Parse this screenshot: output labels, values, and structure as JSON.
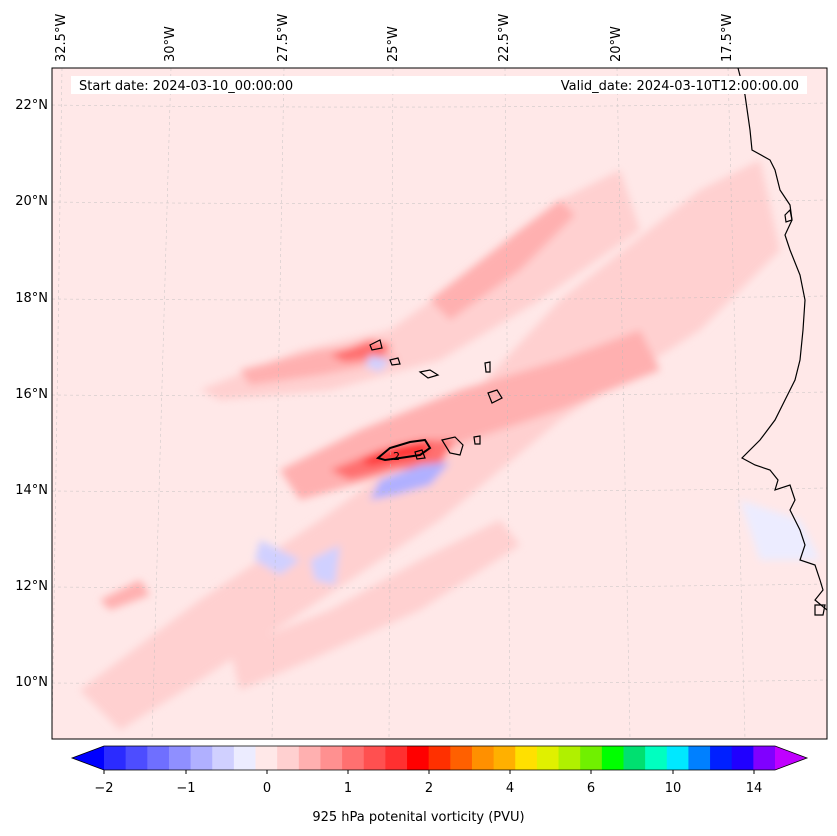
{
  "header": {
    "start_text": "Start date: 2024-03-10_00:00:00",
    "valid_text": "Valid_date: 2024-03-10T12:00:00.00"
  },
  "map": {
    "longitude_labels": [
      "32.5°W",
      "30°W",
      "27.5°W",
      "25°W",
      "22.5°W",
      "20°W",
      "17.5°W"
    ],
    "latitude_labels": [
      "22°N",
      "20°N",
      "18°N",
      "16°N",
      "14°N",
      "12°N",
      "10°N"
    ],
    "contour_label": "2",
    "background_color": "#ffe8e8",
    "coastline_color": "#000000"
  },
  "colorbar": {
    "tick_labels": [
      "−2",
      "−1",
      "0",
      "1",
      "2",
      "4",
      "6",
      "10",
      "14"
    ],
    "label": "925 hPa potenital vorticity (PVU)",
    "colors": [
      "#0000ff",
      "#2b2bff",
      "#4d4dff",
      "#6f6fff",
      "#8f8fff",
      "#b0b0ff",
      "#d0d0ff",
      "#ececff",
      "#ffe8e8",
      "#ffd0d0",
      "#ffb0b0",
      "#ff9090",
      "#ff7070",
      "#ff5050",
      "#ff3030",
      "#ff0000",
      "#ff3000",
      "#ff6000",
      "#ff9000",
      "#ffb000",
      "#ffe000",
      "#e0f000",
      "#b0f000",
      "#70f000",
      "#00ff00",
      "#00e070",
      "#00ffc0",
      "#00e8ff",
      "#0080ff",
      "#0020ff",
      "#2000ff",
      "#8000ff",
      "#c000ff"
    ]
  }
}
